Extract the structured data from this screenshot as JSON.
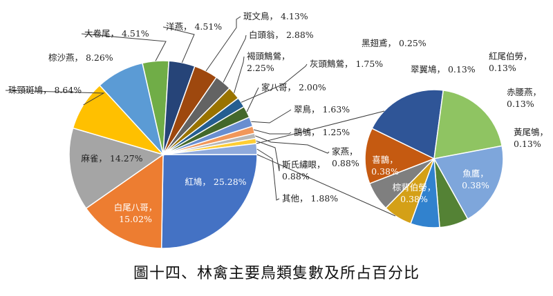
{
  "chart_data": {
    "type": "pie",
    "title": "圖十四、林禽主要鳥類隻數及所占百分比",
    "main_pie": {
      "slices": [
        {
          "name": "紅鳩",
          "value": 25.28,
          "label": "紅鳩, 25.28%",
          "color": "#4472C4"
        },
        {
          "name": "白尾八哥",
          "value": 15.02,
          "label": "白尾八哥, 15.02%",
          "color": "#ED7D31"
        },
        {
          "name": "麻雀",
          "value": 14.27,
          "label": "麻雀, 14.27%",
          "color": "#A5A5A5"
        },
        {
          "name": "珠頸斑鳩",
          "value": 8.64,
          "label": "珠頸斑鳩, 8.64%",
          "color": "#FFC000"
        },
        {
          "name": "棕沙燕",
          "value": 8.26,
          "label": "棕沙燕, 8.26%",
          "color": "#5B9BD5"
        },
        {
          "name": "大卷尾",
          "value": 4.51,
          "label": "大卷尾, 4.51%",
          "color": "#70AD47"
        },
        {
          "name": "洋燕",
          "value": 4.51,
          "label": "洋燕, 4.51%",
          "color": "#264478"
        },
        {
          "name": "斑文鳥",
          "value": 4.13,
          "label": "斑文鳥, 4.13%",
          "color": "#9E480E"
        },
        {
          "name": "白頭翁",
          "value": 2.88,
          "label": "白頭翁, 2.88%",
          "color": "#636363"
        },
        {
          "name": "褐頭鷦鶯",
          "value": 2.25,
          "label": "褐頭鷦鶯, 2.25%",
          "color": "#997300"
        },
        {
          "name": "灰頭鷦鶯",
          "value": 1.75,
          "label": "灰頭鷦鶯, 1.75%",
          "color": "#255E91"
        },
        {
          "name": "家八哥",
          "value": 2.0,
          "label": "家八哥, 2.00%",
          "color": "#43682B"
        },
        {
          "name": "翠鳥",
          "value": 1.63,
          "label": "翠鳥, 1.63%",
          "color": "#698ED0"
        },
        {
          "name": "鵲鴝",
          "value": 1.25,
          "label": "鵲鴝, 1.25%",
          "color": "#F1975A"
        },
        {
          "name": "家燕",
          "value": 0.88,
          "label": "家燕, 0.88%",
          "color": "#B7B7B7"
        },
        {
          "name": "斯氏繡眼",
          "value": 0.88,
          "label": "斯氏繡眼, 0.88%",
          "color": "#FFCD33"
        },
        {
          "name": "其他",
          "value": 1.88,
          "label": "其他, 1.88%",
          "color": "#8FAADC"
        }
      ]
    },
    "secondary_pie": {
      "parent": "其他",
      "slices": [
        {
          "name": "喜鵲",
          "value": 0.38,
          "label": "喜鵲, 0.38%",
          "color": "#2F5597"
        },
        {
          "name": "棕背伯勞",
          "value": 0.38,
          "label": "棕背伯勞, 0.38%",
          "color": "#8FC462"
        },
        {
          "name": "魚鷹",
          "value": 0.38,
          "label": "魚鷹, 0.38%",
          "color": "#7EA6DB"
        },
        {
          "name": "黃尾鴝",
          "value": 0.13,
          "label": "黃尾鴝, 0.13%",
          "color": "#548235"
        },
        {
          "name": "赤腰燕",
          "value": 0.13,
          "label": "赤腰燕, 0.13%",
          "color": "#3182CE"
        },
        {
          "name": "紅尾伯勞",
          "value": 0.13,
          "label": "紅尾伯勞, 0.13%",
          "color": "#D4A017"
        },
        {
          "name": "翠翼鳩",
          "value": 0.13,
          "label": "翠翼鳩, 0.13%",
          "color": "#7F7F7F"
        },
        {
          "name": "黑翅鳶",
          "value": 0.25,
          "label": "黑翅鳶, 0.25%",
          "color": "#C55A11"
        }
      ]
    }
  }
}
